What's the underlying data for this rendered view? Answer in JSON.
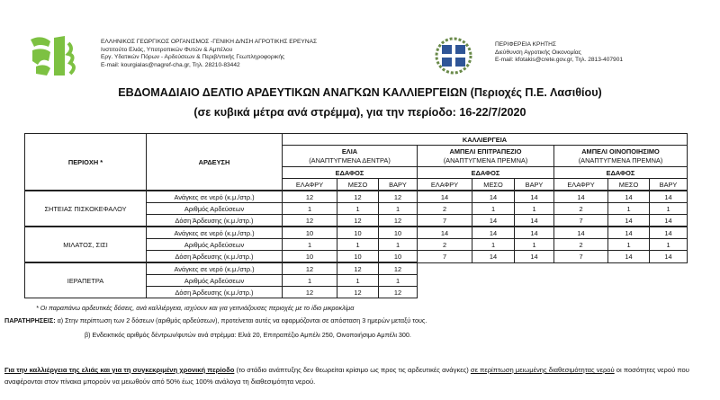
{
  "left_header": {
    "lines": [
      "ΕΛΛΗΝΙΚΟΣ ΓΕΩΡΓΙΚΟΣ ΟΡΓΑΝΙΣΜΟΣ -ΓΕΝΙΚΗ Δ/ΝΣΗ ΑΓΡΟΤΙΚΗΣ ΕΡΕΥΝΑΣ",
      "Ινστιτούτο Ελιάς, Υποτροπικών Φυτών & Αμπέλου",
      "Εργ. Υδατικών Πόρων - Αρδεύσεων & Περιβ/ντικής Γεωπληροφορικής",
      "E-mail: kourgialas@nagref-cha.gr, Τηλ. 28210-83442"
    ],
    "logo_color": "#7dc142"
  },
  "right_header": {
    "lines": [
      "ΠΕΡΙΦΕΡΕΙΑ ΚΡΗΤΗΣ",
      "Διεύθυνση Αγροτικής Οικονομίας",
      "E-mail: kfotakis@crete.gov.gr, Τηλ. 2813-407901"
    ],
    "emblem_color": "#2f5597"
  },
  "title": {
    "line1": "ΕΒΔΟΜΑΔΙΑΙΟ ΔΕΛΤΙΟ ΑΡΔΕΥΤΙΚΩΝ ΑΝΑΓΚΩΝ ΚΑΛΛΙΕΡΓΕΙΩΝ (Περιοχές Π.Ε. Λασιθίου)",
    "line2": "(σε κυβικά μέτρα ανά στρέμμα), για την περίοδο: 16-22/7/2020"
  },
  "table": {
    "region_header": "ΠΕΡΙΟΧΗ *",
    "irrigation_header": "ΑΡΔΕΥΣΗ",
    "crop_header": "ΚΑΛΛΙΕΡΓΕΙΑ",
    "crops": [
      {
        "name": "ΕΛΙΑ",
        "sub": "(ΑΝΑΠΤΥΓΜΕΝΑ ΔΕΝΤΡΑ)",
        "soil": "ΕΔΑΦΟΣ"
      },
      {
        "name": "ΑΜΠΕΛΙ ΕΠΙΤΡΑΠΕΖΙΟ",
        "sub": "(ΑΝΑΠΤΥΓΜΕΝΑ ΠΡΕΜΝΑ)",
        "soil": "ΕΔΑΦΟΣ"
      },
      {
        "name": "ΑΜΠΕΛΙ ΟΙΝΟΠΟΙΗΣΙΜΟ",
        "sub": "(ΑΝΑΠΤΥΓΜΕΝΑ ΠΡΕΜΝΑ)",
        "soil": "ΕΔΑΦΟΣ"
      }
    ],
    "soil_types": [
      "ΕΛΑΦΡΥ",
      "ΜΕΣΟ",
      "ΒΑΡΥ"
    ],
    "regions": [
      {
        "name": "ΣΗΤΕΙΑΣ ΠΙΣΚΟΚΕΦΑΛΟΥ",
        "rows": [
          {
            "label": "Ανάγκες σε νερό (κ.μ./στρ.)",
            "values": [
              "12",
              "12",
              "12",
              "14",
              "14",
              "14",
              "14",
              "14",
              "14"
            ]
          },
          {
            "label": "Αριθμός Αρδεύσεων",
            "values": [
              "1",
              "1",
              "1",
              "2",
              "1",
              "1",
              "2",
              "1",
              "1"
            ]
          },
          {
            "label": "Δόση Άρδευσης (κ.μ./στρ.)",
            "values": [
              "12",
              "12",
              "12",
              "7",
              "14",
              "14",
              "7",
              "14",
              "14"
            ]
          }
        ]
      },
      {
        "name": "ΜΙΛΑΤΟΣ, ΣΙΣΙ",
        "rows": [
          {
            "label": "Ανάγκες σε νερό (κ.μ./στρ.)",
            "values": [
              "10",
              "10",
              "10",
              "14",
              "14",
              "14",
              "14",
              "14",
              "14"
            ]
          },
          {
            "label": "Αριθμός Αρδεύσεων",
            "values": [
              "1",
              "1",
              "1",
              "2",
              "1",
              "1",
              "2",
              "1",
              "1"
            ]
          },
          {
            "label": "Δόση Άρδευσης (κ.μ./στρ.)",
            "values": [
              "10",
              "10",
              "10",
              "7",
              "14",
              "14",
              "7",
              "14",
              "14"
            ]
          }
        ]
      },
      {
        "name": "ΙΕΡΑΠΕΤΡΑ",
        "rows": [
          {
            "label": "Ανάγκες σε νερό (κ.μ./στρ.)",
            "values": [
              "12",
              "12",
              "12"
            ]
          },
          {
            "label": "Αριθμός Αρδεύσεων",
            "values": [
              "1",
              "1",
              "1"
            ]
          },
          {
            "label": "Δόση Άρδευσης (κ.μ./στρ.)",
            "values": [
              "12",
              "12",
              "12"
            ]
          }
        ]
      }
    ]
  },
  "notes": {
    "footnote": "* Οι παραπάνω αρδευτικές δόσεις, ανά καλλιέργεια, ισχύουν και για γειτνιάζουσες περιοχές με το ίδιο μικροκλίμα",
    "remarks_label": "ΠΑΡΑΤΗΡΗΣΕΙΣ:",
    "remark_a": "α) Στην περίπτωση των 2 δόσεων (αριθμός αρδεύσεων), προτείνεται αυτές να εφαρμόζονται σε απόσταση 3 ημερών μεταξύ τους.",
    "remark_b": "β) Ενδεικτικός αριθμός δέντρων/φυτών ανά στρέμμα: Ελιά 20, Επιτραπέζιο Αμπέλι 250, Οινοποιήσιμο Αμπέλι 300."
  },
  "paragraph": {
    "part1": "Για την καλλιέργεια της ελιάς και για τη συγκεκριμένη χρονική περίοδο",
    "part2": " (το στάδιο ανάπτυξης δεν θεωρείται κρίσιμο ως προς τις αρδευτικές ανάγκες) ",
    "part3": "σε περίπτωση μειωμένης διαθεσιμότητας νερού",
    "part4": " οι ποσότητες νερού που αναφέρονται στον πίνακα μπορούν να μειωθούν από 50% έως 100% ανάλογα τη διαθεσιμότητα νερού."
  }
}
